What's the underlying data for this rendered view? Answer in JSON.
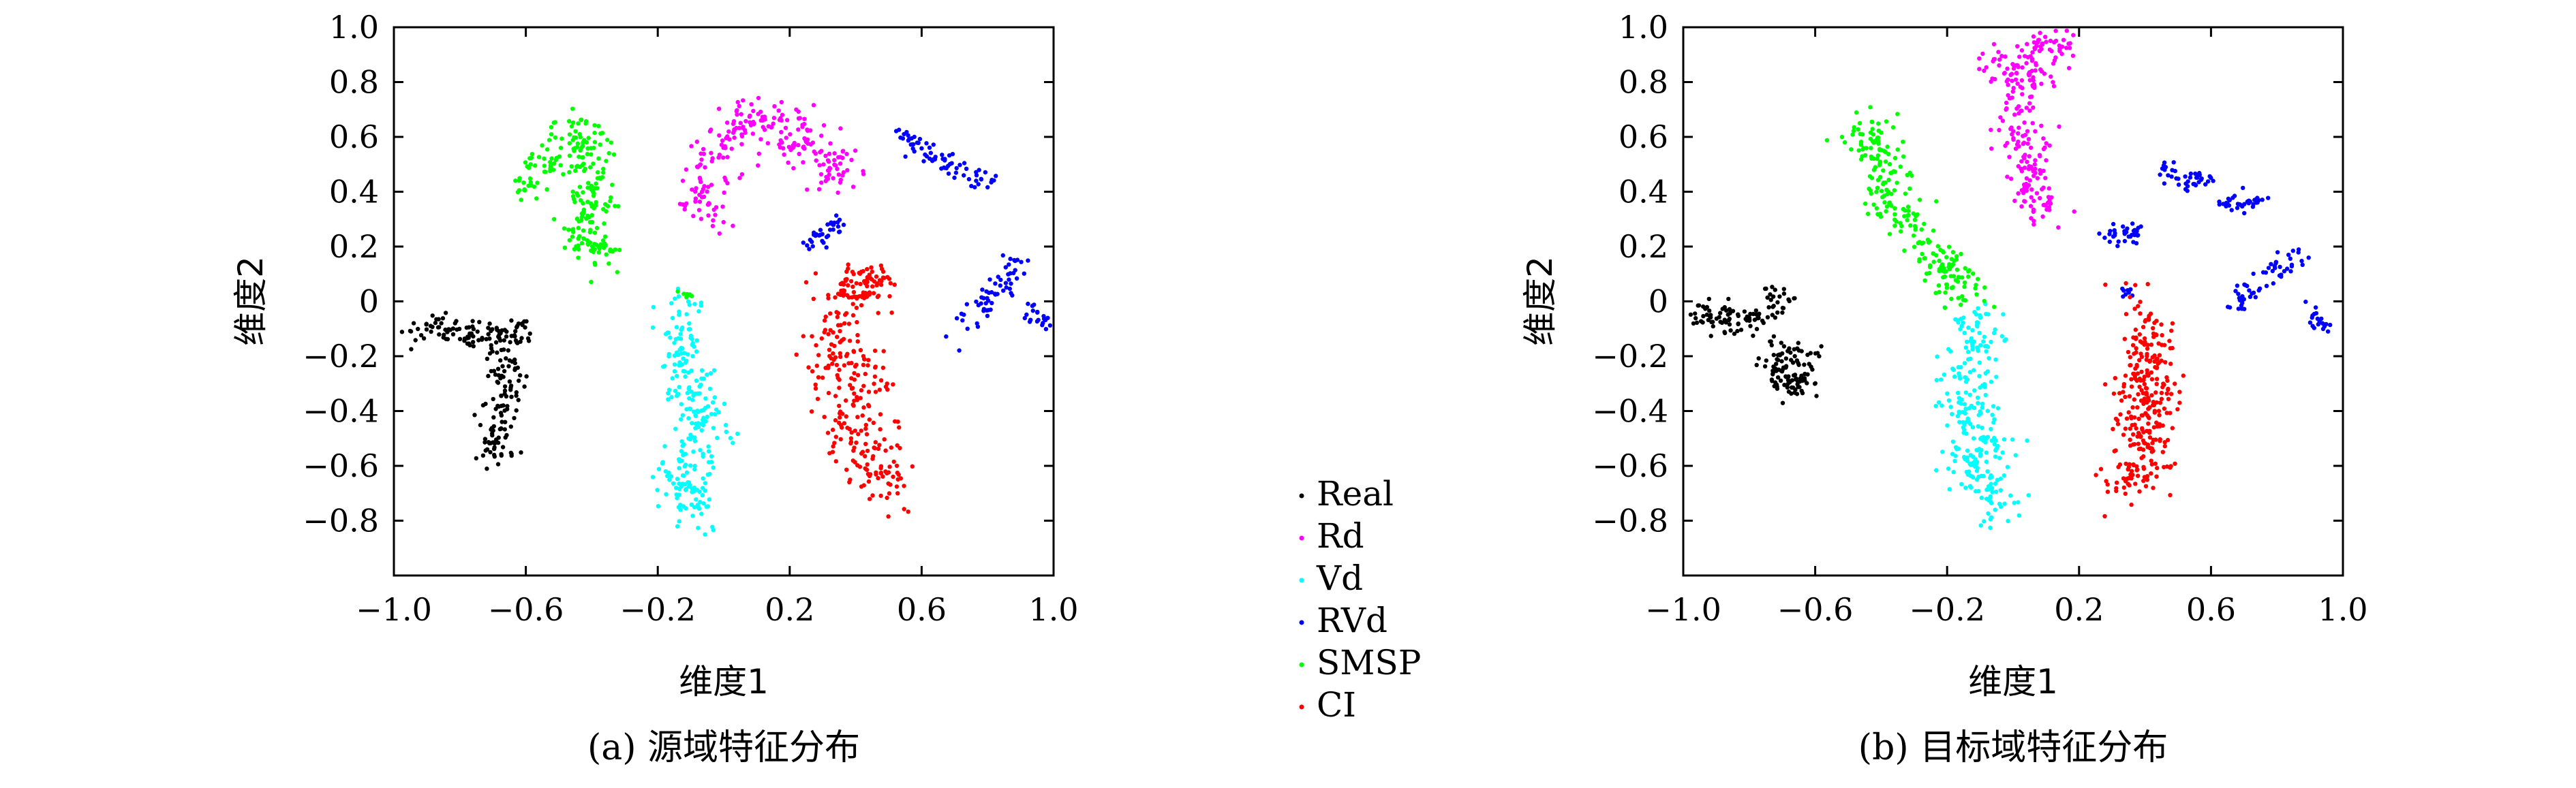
{
  "chart_data": [
    {
      "type": "scatter",
      "caption": "(a) 源域特征分布",
      "xlabel": "维度1",
      "ylabel": "维度2",
      "xlim": [
        -1.0,
        1.0
      ],
      "ylim": [
        -1.0,
        1.0
      ],
      "xticks": [
        "−1.0",
        "−0.6",
        "−0.2",
        "0.2",
        "0.6",
        "1.0"
      ],
      "yticks": [
        "1.0",
        "0.8",
        "0.6",
        "0.4",
        "0.2",
        "0",
        "−0.2",
        "−0.4",
        "−0.6",
        "−0.8"
      ],
      "series": [
        {
          "name": "Real",
          "color": "#000000",
          "clusters": [
            {
              "points": [
                [
                  -0.97,
                  -0.12
                ],
                [
                  -0.9,
                  -0.08
                ],
                [
                  -0.82,
                  -0.1
                ],
                [
                  -0.76,
                  -0.12
                ],
                [
                  -0.7,
                  -0.14
                ],
                [
                  -0.65,
                  -0.12
                ],
                [
                  -0.6,
                  -0.1
                ]
              ],
              "spread": 0.028,
              "n": 110
            },
            {
              "points": [
                [
                  -0.66,
                  -0.18
                ],
                [
                  -0.65,
                  -0.28
                ],
                [
                  -0.66,
                  -0.38
                ],
                [
                  -0.68,
                  -0.48
                ],
                [
                  -0.69,
                  -0.57
                ]
              ],
              "spread": 0.03,
              "n": 110
            }
          ]
        },
        {
          "name": "Rd",
          "color": "#ff00ff",
          "clusters": [
            {
              "points": [
                [
                  -0.05,
                  0.3
                ],
                [
                  -0.06,
                  0.42
                ],
                [
                  -0.02,
                  0.55
                ],
                [
                  0.05,
                  0.65
                ],
                [
                  0.14,
                  0.68
                ],
                [
                  0.22,
                  0.6
                ],
                [
                  0.3,
                  0.52
                ],
                [
                  0.35,
                  0.46
                ]
              ],
              "spread": 0.04,
              "n": 240
            }
          ]
        },
        {
          "name": "Vd",
          "color": "#00ffff",
          "clusters": [
            {
              "points": [
                [
                  -0.12,
                  0.0
                ],
                [
                  -0.14,
                  -0.12
                ],
                [
                  -0.12,
                  -0.25
                ],
                [
                  -0.1,
                  -0.36
                ],
                [
                  -0.05,
                  -0.45
                ],
                [
                  -0.09,
                  -0.55
                ],
                [
                  -0.13,
                  -0.66
                ],
                [
                  -0.1,
                  -0.78
                ]
              ],
              "spread": 0.04,
              "n": 250
            }
          ]
        },
        {
          "name": "RVd",
          "color": "#0000ff",
          "clusters": [
            {
              "points": [
                [
                  0.53,
                  0.62
                ],
                [
                  0.6,
                  0.55
                ],
                [
                  0.67,
                  0.5
                ],
                [
                  0.75,
                  0.45
                ],
                [
                  0.82,
                  0.44
                ]
              ],
              "spread": 0.02,
              "n": 70
            },
            {
              "points": [
                [
                  0.26,
                  0.2
                ],
                [
                  0.32,
                  0.26
                ],
                [
                  0.35,
                  0.3
                ]
              ],
              "spread": 0.018,
              "n": 35
            },
            {
              "points": [
                [
                  0.73,
                  -0.1
                ],
                [
                  0.78,
                  -0.02
                ],
                [
                  0.85,
                  0.08
                ],
                [
                  0.9,
                  0.17
                ]
              ],
              "spread": 0.022,
              "n": 60
            },
            {
              "points": [
                [
                  0.93,
                  -0.02
                ],
                [
                  0.97,
                  -0.08
                ]
              ],
              "spread": 0.015,
              "n": 20
            }
          ]
        },
        {
          "name": "SMSP",
          "color": "#00ff00",
          "clusters": [
            {
              "points": [
                [
                  -0.6,
                  0.4
                ],
                [
                  -0.52,
                  0.52
                ],
                [
                  -0.45,
                  0.6
                ],
                [
                  -0.38,
                  0.55
                ],
                [
                  -0.42,
                  0.4
                ],
                [
                  -0.38,
                  0.3
                ],
                [
                  -0.45,
                  0.25
                ],
                [
                  -0.35,
                  0.15
                ]
              ],
              "spread": 0.04,
              "n": 240
            },
            {
              "points": [
                [
                  -0.12,
                  0.02
                ],
                [
                  -0.09,
                  0.03
                ]
              ],
              "spread": 0.01,
              "n": 10
            }
          ]
        },
        {
          "name": "CI",
          "color": "#ff0000",
          "clusters": [
            {
              "points": [
                [
                  0.35,
                  0.0
                ],
                [
                  0.4,
                  0.08
                ],
                [
                  0.47,
                  0.1
                ],
                [
                  0.32,
                  -0.12
                ],
                [
                  0.35,
                  -0.28
                ],
                [
                  0.37,
                  -0.42
                ],
                [
                  0.4,
                  -0.55
                ],
                [
                  0.45,
                  -0.63
                ],
                [
                  0.5,
                  -0.7
                ],
                [
                  0.42,
                  -0.2
                ],
                [
                  0.45,
                  -0.35
                ]
              ],
              "spread": 0.04,
              "n": 320
            }
          ]
        }
      ]
    },
    {
      "type": "scatter",
      "caption": "(b) 目标域特征分布",
      "xlabel": "维度1",
      "ylabel": "维度2",
      "xlim": [
        -1.0,
        1.0
      ],
      "ylim": [
        -1.0,
        1.0
      ],
      "xticks": [
        "−1.0",
        "−0.6",
        "−0.2",
        "0.2",
        "0.6",
        "1.0"
      ],
      "yticks": [
        "1.0",
        "0.8",
        "0.6",
        "0.4",
        "0.2",
        "0",
        "−0.2",
        "−0.4",
        "−0.6",
        "−0.8"
      ],
      "series": [
        {
          "name": "Real",
          "color": "#000000",
          "clusters": [
            {
              "points": [
                [
                  -0.97,
                  -0.05
                ],
                [
                  -0.9,
                  -0.05
                ],
                [
                  -0.82,
                  -0.08
                ],
                [
                  -0.75,
                  -0.05
                ],
                [
                  -0.7,
                  0.05
                ]
              ],
              "spread": 0.028,
              "n": 100
            },
            {
              "points": [
                [
                  -0.72,
                  -0.15
                ],
                [
                  -0.7,
                  -0.25
                ],
                [
                  -0.68,
                  -0.32
                ],
                [
                  -0.64,
                  -0.2
                ],
                [
                  -0.62,
                  -0.3
                ]
              ],
              "spread": 0.03,
              "n": 110
            }
          ]
        },
        {
          "name": "Rd",
          "color": "#ff00ff",
          "clusters": [
            {
              "points": [
                [
                  -0.06,
                  0.85
                ],
                [
                  0.0,
                  0.8
                ],
                [
                  0.06,
                  0.9
                ],
                [
                  0.14,
                  0.95
                ],
                [
                  0.0,
                  0.7
                ],
                [
                  0.02,
                  0.6
                ],
                [
                  0.06,
                  0.5
                ],
                [
                  0.05,
                  0.4
                ],
                [
                  0.08,
                  0.32
                ]
              ],
              "spread": 0.035,
              "n": 250
            }
          ]
        },
        {
          "name": "Vd",
          "color": "#00ffff",
          "clusters": [
            {
              "points": [
                [
                  -0.12,
                  -0.05
                ],
                [
                  -0.1,
                  -0.15
                ],
                [
                  -0.16,
                  -0.3
                ],
                [
                  -0.14,
                  -0.4
                ],
                [
                  -0.08,
                  -0.52
                ],
                [
                  -0.14,
                  -0.6
                ],
                [
                  -0.05,
                  -0.68
                ],
                [
                  -0.06,
                  -0.78
                ]
              ],
              "spread": 0.04,
              "n": 260
            }
          ]
        },
        {
          "name": "RVd",
          "color": "#0000ff",
          "clusters": [
            {
              "points": [
                [
                  0.45,
                  0.5
                ],
                [
                  0.52,
                  0.44
                ],
                [
                  0.58,
                  0.45
                ]
              ],
              "spread": 0.018,
              "n": 40
            },
            {
              "points": [
                [
                  0.28,
                  0.25
                ],
                [
                  0.35,
                  0.24
                ],
                [
                  0.38,
                  0.26
                ]
              ],
              "spread": 0.016,
              "n": 35
            },
            {
              "points": [
                [
                  0.62,
                  0.35
                ],
                [
                  0.7,
                  0.36
                ],
                [
                  0.76,
                  0.38
                ]
              ],
              "spread": 0.016,
              "n": 35
            },
            {
              "points": [
                [
                  0.68,
                  -0.02
                ],
                [
                  0.73,
                  0.06
                ],
                [
                  0.8,
                  0.12
                ],
                [
                  0.88,
                  0.18
                ]
              ],
              "spread": 0.02,
              "n": 55
            },
            {
              "points": [
                [
                  0.9,
                  -0.02
                ],
                [
                  0.95,
                  -0.1
                ]
              ],
              "spread": 0.015,
              "n": 20
            },
            {
              "points": [
                [
                  0.33,
                  0.04
                ],
                [
                  0.36,
                  0.05
                ]
              ],
              "spread": 0.01,
              "n": 8
            }
          ]
        },
        {
          "name": "SMSP",
          "color": "#00ff00",
          "clusters": [
            {
              "points": [
                [
                  -0.48,
                  0.55
                ],
                [
                  -0.42,
                  0.62
                ],
                [
                  -0.38,
                  0.5
                ],
                [
                  -0.42,
                  0.4
                ],
                [
                  -0.35,
                  0.35
                ],
                [
                  -0.3,
                  0.25
                ],
                [
                  -0.24,
                  0.15
                ],
                [
                  -0.2,
                  0.1
                ],
                [
                  -0.12,
                  0.02
                ]
              ],
              "spread": 0.035,
              "n": 240
            }
          ]
        },
        {
          "name": "CI",
          "color": "#ff0000",
          "clusters": [
            {
              "points": [
                [
                  0.38,
                  0.05
                ],
                [
                  0.4,
                  -0.1
                ],
                [
                  0.42,
                  -0.2
                ],
                [
                  0.36,
                  -0.3
                ],
                [
                  0.44,
                  -0.35
                ],
                [
                  0.35,
                  -0.45
                ],
                [
                  0.42,
                  -0.5
                ],
                [
                  0.38,
                  -0.6
                ],
                [
                  0.33,
                  -0.72
                ],
                [
                  0.48,
                  -0.25
                ]
              ],
              "spread": 0.04,
              "n": 300
            }
          ]
        }
      ]
    }
  ],
  "legend": {
    "placement": "center-bottom between panels",
    "entries": [
      {
        "label": "Real",
        "color": "#000000"
      },
      {
        "label": "Rd",
        "color": "#ff00ff"
      },
      {
        "label": "Vd",
        "color": "#00ffff"
      },
      {
        "label": "RVd",
        "color": "#0000ff"
      },
      {
        "label": "SMSP",
        "color": "#00ff00"
      },
      {
        "label": "CI",
        "color": "#ff0000"
      }
    ]
  }
}
